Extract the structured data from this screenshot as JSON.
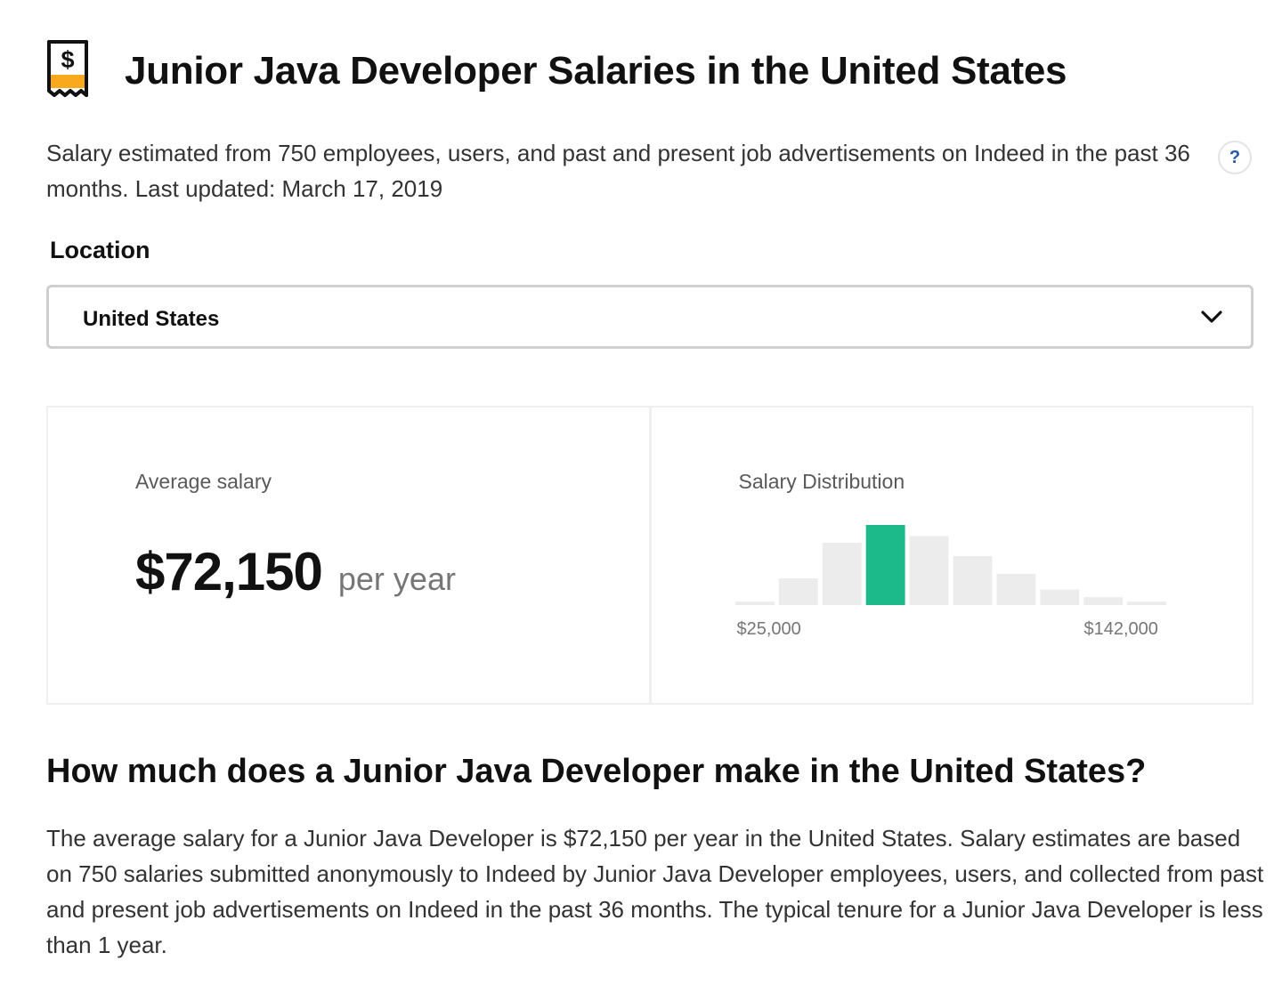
{
  "header": {
    "title": "Junior Java Developer Salaries in the United States",
    "icon": "receipt-dollar-icon",
    "icon_symbol": "$",
    "icon_accent_color": "#f8a91e"
  },
  "summary": {
    "text": "Salary estimated from 750 employees, users, and past and present job advertisements on Indeed in the past 36 months. Last updated: March 17, 2019",
    "help_label": "?"
  },
  "location": {
    "label": "Location",
    "selected": "United States"
  },
  "average": {
    "label": "Average salary",
    "amount": "$72,150",
    "period": "per year"
  },
  "distribution": {
    "label": "Salary Distribution",
    "highlight_color": "#1cb98b",
    "bar_color": "#ececec",
    "min_label": "$25,000",
    "max_label": "$142,000"
  },
  "chart_data": {
    "type": "bar",
    "values": [
      3,
      24,
      56,
      72,
      62,
      44,
      28,
      14,
      7,
      3
    ],
    "highlight_index": 3,
    "ylim": [
      0,
      72
    ]
  },
  "question": {
    "heading": "How much does a Junior Java Developer make in the United States?",
    "body": "The average salary for a Junior Java Developer is $72,150 per year in the United States. Salary estimates are based on 750 salaries submitted anonymously to Indeed by Junior Java Developer employees, users, and collected from past and present job advertisements on Indeed in the past 36 months. The typical tenure for a Junior Java Developer is less than 1 year."
  }
}
